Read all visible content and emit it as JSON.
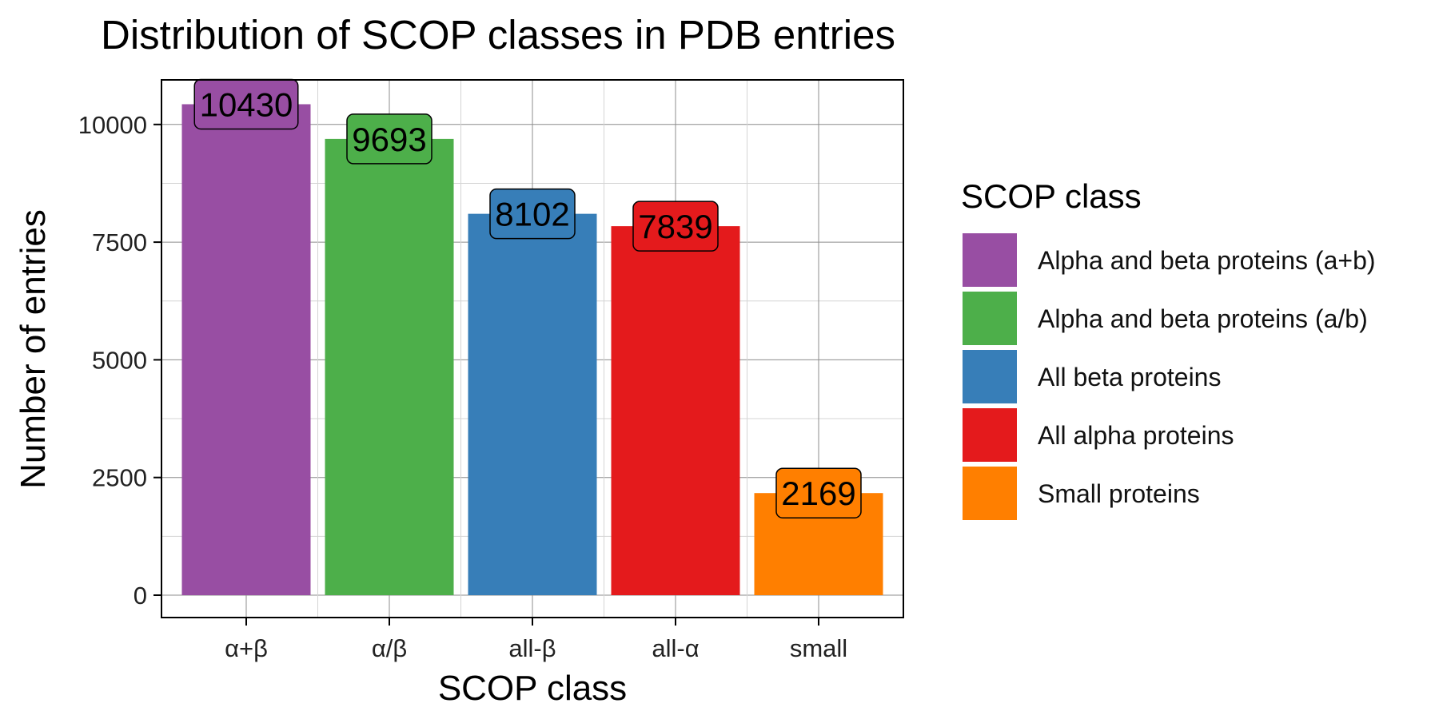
{
  "chart_data": {
    "type": "bar",
    "title": "Distribution of SCOP classes in PDB entries",
    "xlabel": "SCOP class",
    "ylabel": "Number of entries",
    "ylim": [
      0,
      11000
    ],
    "yticks": [
      0,
      2500,
      5000,
      7500,
      10000
    ],
    "grid": true,
    "legend": {
      "title": "SCOP class",
      "placement": "right",
      "entries": [
        {
          "label": "Alpha and beta proteins (a+b)",
          "color": "#984EA3"
        },
        {
          "label": "Alpha and beta proteins (a/b)",
          "color": "#4DAF4A"
        },
        {
          "label": "All beta proteins",
          "color": "#377EB8"
        },
        {
          "label": "All alpha proteins",
          "color": "#E41A1C"
        },
        {
          "label": "Small proteins",
          "color": "#FF7F00"
        }
      ]
    },
    "categories": [
      "α+β",
      "α/β",
      "all-β",
      "all-α",
      "small"
    ],
    "values": [
      10430,
      9693,
      8102,
      7839,
      2169
    ],
    "colors": [
      "#984EA3",
      "#4DAF4A",
      "#377EB8",
      "#E41A1C",
      "#FF7F00"
    ],
    "data_labels": [
      "10430",
      "9693",
      "8102",
      "7839",
      "2169"
    ]
  }
}
